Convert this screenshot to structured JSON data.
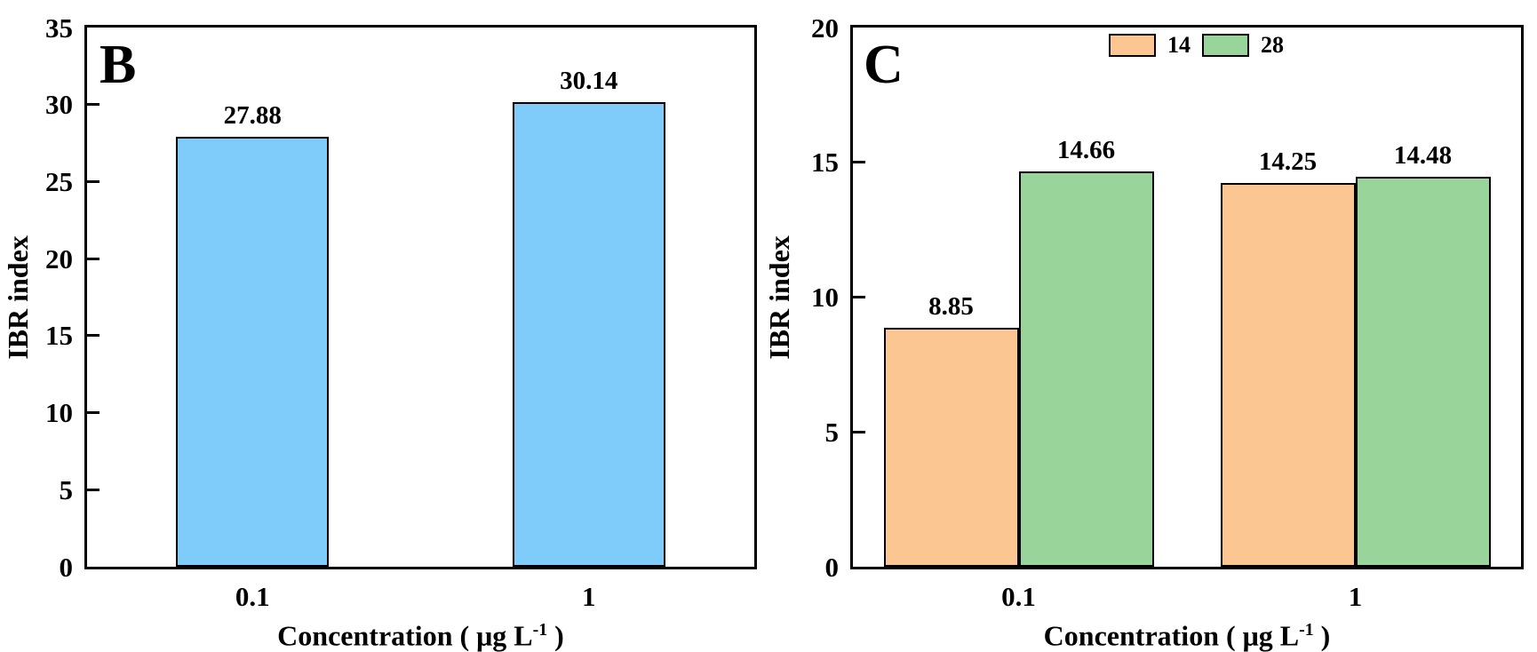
{
  "background_color": "#ffffff",
  "text_color": "#000000",
  "axis_color": "#000000",
  "chart_data": [
    {
      "type": "bar",
      "panel_label": "B",
      "title": "",
      "ylabel": "IBR index",
      "xlabel": "Concentration ( μg L⁻¹ )",
      "ylim": [
        0,
        35
      ],
      "yticks": [
        0,
        5,
        10,
        15,
        20,
        25,
        30,
        35
      ],
      "categories": [
        "0.1",
        "1"
      ],
      "series": [
        {
          "name": "",
          "color": "#7fccfa",
          "values": [
            27.88,
            30.14
          ]
        }
      ],
      "bar_labels": [
        [
          "27.88",
          "30.14"
        ]
      ],
      "legend": null,
      "grid": false,
      "bar_edge_color": "#000000"
    },
    {
      "type": "bar",
      "panel_label": "C",
      "title": "",
      "ylabel": "IBR index",
      "xlabel": "Concentration ( μg L⁻¹ )",
      "ylim": [
        0,
        20
      ],
      "yticks": [
        0,
        5,
        10,
        15,
        20
      ],
      "categories": [
        "0.1",
        "1"
      ],
      "series": [
        {
          "name": "14",
          "color": "#fbc691",
          "values": [
            8.85,
            14.25
          ]
        },
        {
          "name": "28",
          "color": "#99d49a",
          "values": [
            14.66,
            14.48
          ]
        }
      ],
      "bar_labels": [
        [
          "8.85",
          "14.25"
        ],
        [
          "14.66",
          "14.48"
        ]
      ],
      "legend": {
        "position": "top-center",
        "entries": [
          "14",
          "28"
        ]
      },
      "grid": false,
      "bar_edge_color": "#000000"
    }
  ]
}
